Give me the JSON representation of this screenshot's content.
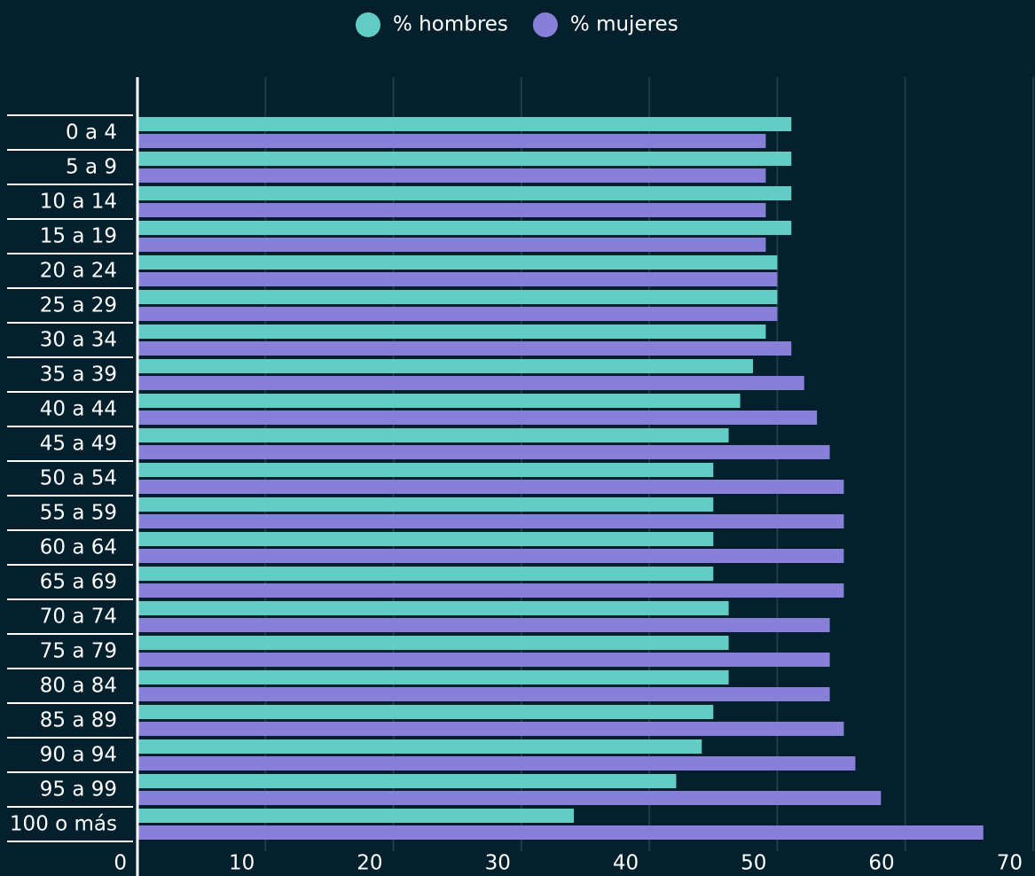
{
  "chart_data": {
    "type": "bar",
    "orientation": "horizontal",
    "categories": [
      "0 a 4",
      "5 a 9",
      "10 a 14",
      "15 a 19",
      "20 a 24",
      "25 a 29",
      "30 a 34",
      "35 a 39",
      "40 a 44",
      "45 a 49",
      "50 a 54",
      "55 a 59",
      "60 a 64",
      "65 a 69",
      "70 a 74",
      "75 a 79",
      "80 a 84",
      "85 a 89",
      "90 a 94",
      "95 a 99",
      "100 o más"
    ],
    "series": [
      {
        "name": "% hombres",
        "color": "#62cdc5",
        "values": [
          51.1,
          51.1,
          51.1,
          51.1,
          50.0,
          50.0,
          49.1,
          48.1,
          47.1,
          46.2,
          45.0,
          45.0,
          45.0,
          45.0,
          46.2,
          46.2,
          46.2,
          45.0,
          44.1,
          42.1,
          34.1
        ]
      },
      {
        "name": "% mujeres",
        "color": "#8880d8",
        "values": [
          49.1,
          49.1,
          49.1,
          49.1,
          50.0,
          50.0,
          51.1,
          52.1,
          53.1,
          54.1,
          55.2,
          55.2,
          55.2,
          55.2,
          54.1,
          54.1,
          54.1,
          55.2,
          56.1,
          58.1,
          66.1
        ]
      }
    ],
    "xlim": [
      0,
      70
    ],
    "xticks": [
      0,
      10,
      20,
      30,
      40,
      50,
      60,
      70
    ],
    "grid": true,
    "legend": "top"
  }
}
